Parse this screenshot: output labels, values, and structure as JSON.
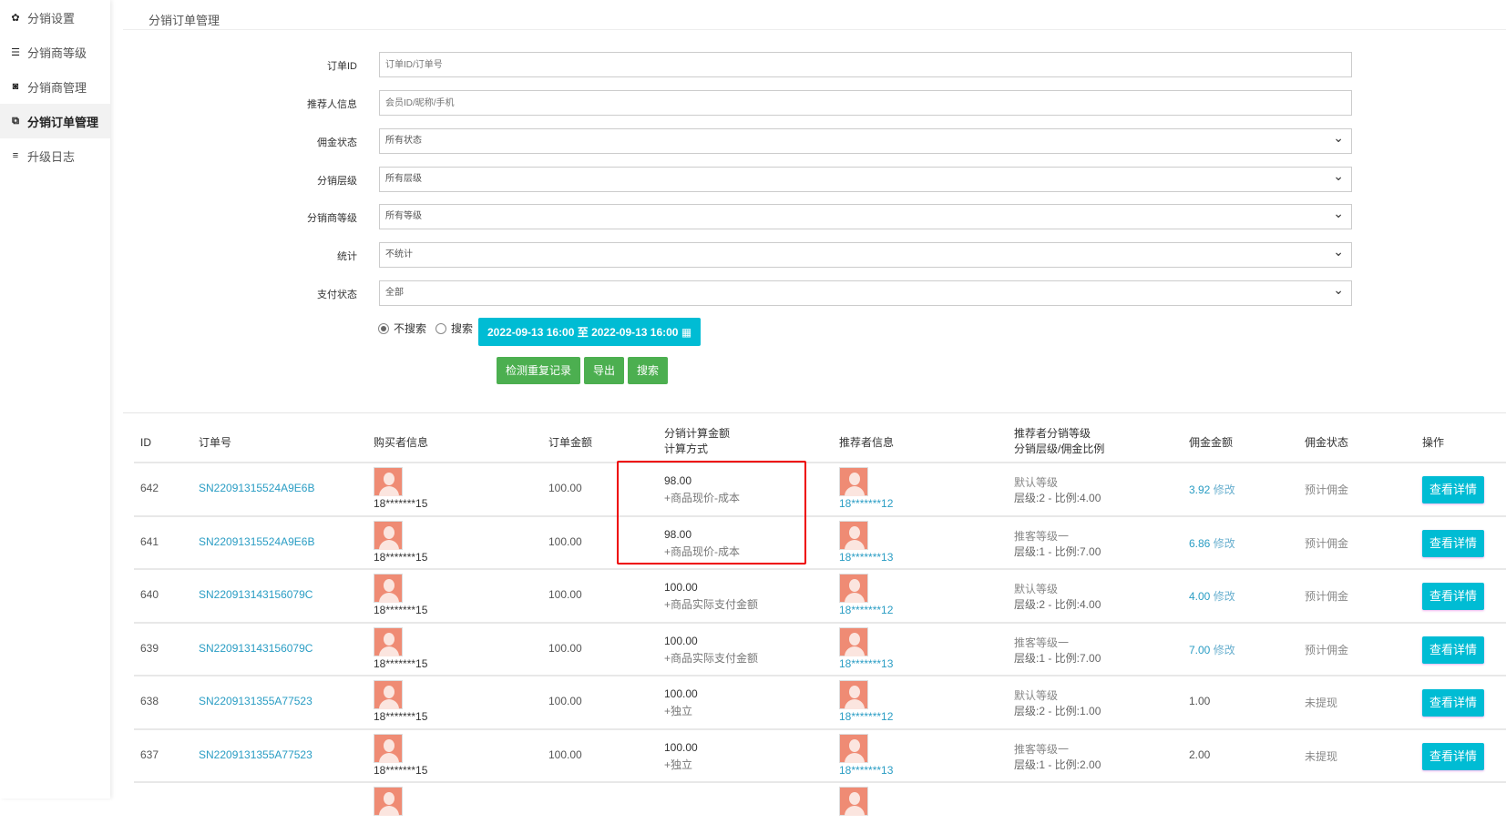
{
  "sidebar": {
    "items": [
      {
        "label": "分销设置",
        "icon": "gear-icon",
        "glyph": "✿"
      },
      {
        "label": "分销商等级",
        "icon": "sliders-icon",
        "glyph": "☰"
      },
      {
        "label": "分销商管理",
        "icon": "share-icon",
        "glyph": "◙"
      },
      {
        "label": "分销订单管理",
        "icon": "copy-icon",
        "glyph": "⧉",
        "active": true
      },
      {
        "label": "升级日志",
        "icon": "list-icon",
        "glyph": "≡"
      }
    ]
  },
  "header": {
    "title": "分销订单管理"
  },
  "form": {
    "order_id": {
      "label": "订单ID",
      "placeholder": "订单ID/订单号"
    },
    "referrer": {
      "label": "推荐人信息",
      "placeholder": "会员ID/昵称/手机"
    },
    "commission_status": {
      "label": "佣金状态",
      "value": "所有状态"
    },
    "level": {
      "label": "分销层级",
      "value": "所有层级"
    },
    "dist_level": {
      "label": "分销商等级",
      "value": "所有等级"
    },
    "stats": {
      "label": "统计",
      "value": "不统计"
    },
    "pay_status": {
      "label": "支付状态",
      "value": "全部"
    },
    "radio_no": "不搜索",
    "radio_yes": "搜索",
    "date_range": "2022-09-13 16:00 至 2022-09-13 16:00",
    "btn_check": "检测重复记录",
    "btn_export": "导出",
    "btn_search": "搜索"
  },
  "table": {
    "headers": {
      "id": "ID",
      "order": "订单号",
      "buyer": "购买者信息",
      "amount": "订单金额",
      "calc1": "分销计算金额",
      "calc2": "计算方式",
      "referrer": "推荐者信息",
      "lvl1": "推荐者分销等级",
      "lvl2": "分销层级/佣金比例",
      "commission": "佣金金额",
      "status": "佣金状态",
      "op": "操作"
    },
    "edit_label": "修改",
    "detail_label": "查看详情",
    "rows": [
      {
        "id": "642",
        "order": "SN22091315524A9E6B",
        "buyer": "18*******15",
        "amount": "100.00",
        "calc_amount": "98.00",
        "calc_method": "+商品现价-成本",
        "referrer": "18*******12",
        "grade": "默认等级",
        "ratio": "层级:2 - 比例:4.00",
        "commission": "3.92",
        "editable": true,
        "status": "预计佣金"
      },
      {
        "id": "641",
        "order": "SN22091315524A9E6B",
        "buyer": "18*******15",
        "amount": "100.00",
        "calc_amount": "98.00",
        "calc_method": "+商品现价-成本",
        "referrer": "18*******13",
        "grade": "推客等级一",
        "ratio": "层级:1 - 比例:7.00",
        "commission": "6.86",
        "editable": true,
        "status": "预计佣金"
      },
      {
        "id": "640",
        "order": "SN220913143156079C",
        "buyer": "18*******15",
        "amount": "100.00",
        "calc_amount": "100.00",
        "calc_method": "+商品实际支付金额",
        "referrer": "18*******12",
        "grade": "默认等级",
        "ratio": "层级:2 - 比例:4.00",
        "commission": "4.00",
        "editable": true,
        "status": "预计佣金"
      },
      {
        "id": "639",
        "order": "SN220913143156079C",
        "buyer": "18*******15",
        "amount": "100.00",
        "calc_amount": "100.00",
        "calc_method": "+商品实际支付金额",
        "referrer": "18*******13",
        "grade": "推客等级一",
        "ratio": "层级:1 - 比例:7.00",
        "commission": "7.00",
        "editable": true,
        "status": "预计佣金"
      },
      {
        "id": "638",
        "order": "SN2209131355A77523",
        "buyer": "18*******15",
        "amount": "100.00",
        "calc_amount": "100.00",
        "calc_method": "+独立",
        "referrer": "18*******12",
        "grade": "默认等级",
        "ratio": "层级:2 - 比例:1.00",
        "commission": "1.00",
        "editable": false,
        "status": "未提现"
      },
      {
        "id": "637",
        "order": "SN2209131355A77523",
        "buyer": "18*******15",
        "amount": "100.00",
        "calc_amount": "100.00",
        "calc_method": "+独立",
        "referrer": "18*******13",
        "grade": "推客等级一",
        "ratio": "层级:1 - 比例:2.00",
        "commission": "2.00",
        "editable": false,
        "status": "未提现"
      }
    ]
  },
  "colors": {
    "accent": "#00bcd4",
    "green": "#4caf50",
    "link": "#2a9dc4",
    "highlight": "#e00000"
  }
}
